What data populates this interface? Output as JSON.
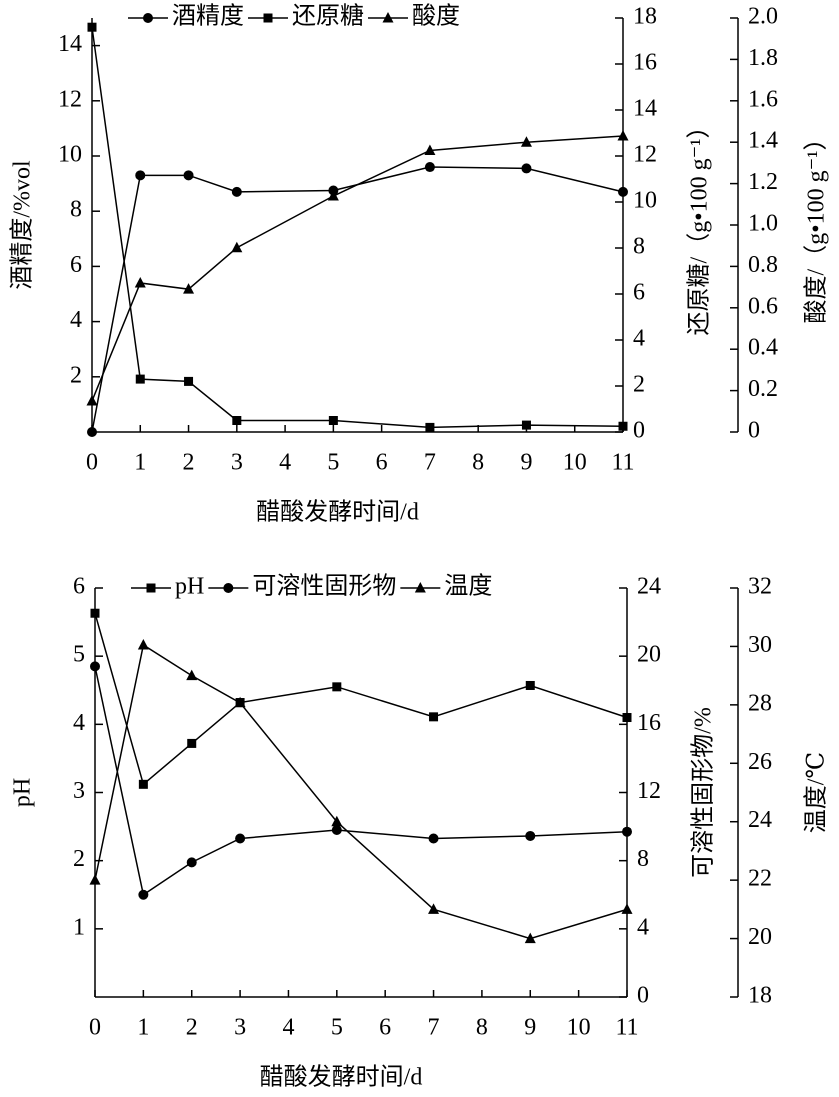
{
  "chart_data": [
    {
      "type": "line",
      "xlabel": "醋酸发酵时间/d",
      "ylabel": "酒精度/%vol",
      "y2label": "还原糖/（g•100 g⁻¹）",
      "y3label": "酸度/（g•100 g⁻¹）",
      "x": [
        0,
        1,
        2,
        3,
        5,
        7,
        9,
        11
      ],
      "xlim": [
        0,
        11
      ],
      "xticks": [
        0,
        1,
        2,
        3,
        4,
        5,
        6,
        7,
        8,
        9,
        10,
        11
      ],
      "ylim": [
        0,
        15
      ],
      "yticks": [
        2,
        4,
        6,
        8,
        10,
        12,
        14
      ],
      "y2lim": [
        0,
        18
      ],
      "y2ticks": [
        0,
        2,
        4,
        6,
        8,
        10,
        12,
        14,
        16,
        18
      ],
      "y3lim": [
        0,
        2
      ],
      "y3ticks": [
        0,
        0.2,
        0.4,
        0.6,
        0.8,
        {
          "value": 1,
          "label": "1.0"
        },
        1.2,
        1.4,
        1.6,
        1.8,
        {
          "value": 2,
          "label": "2.0"
        }
      ],
      "series": [
        {
          "name": "酒精度",
          "color": "#000000",
          "marker": "circle",
          "axis": "y",
          "values": [
            0,
            9.3,
            9.3,
            8.7,
            8.75,
            9.6,
            9.55,
            8.7
          ]
        },
        {
          "name": "还原糖",
          "color": "#000000",
          "marker": "square",
          "axis": "y2",
          "values": [
            17.6,
            2.3,
            2.2,
            0.5,
            0.5,
            0.2,
            0.3,
            0.25
          ]
        },
        {
          "name": "酸度",
          "color": "#000000",
          "marker": "triangle",
          "axis": "y3",
          "values": [
            0.15,
            0.72,
            0.69,
            0.89,
            1.14,
            1.36,
            1.4,
            1.43
          ]
        }
      ]
    },
    {
      "type": "line",
      "xlabel": "醋酸发酵时间/d",
      "ylabel": "pH",
      "y2label": "可溶性固形物/%",
      "y3label": "温度/℃",
      "x": [
        0,
        1,
        2,
        3,
        5,
        7,
        9,
        11
      ],
      "xlim": [
        0,
        11
      ],
      "xticks": [
        0,
        1,
        2,
        3,
        4,
        5,
        6,
        7,
        8,
        9,
        10,
        11
      ],
      "ylim": [
        0,
        6
      ],
      "yticks": [
        1,
        2,
        3,
        4,
        5,
        6
      ],
      "y2lim": [
        0,
        24
      ],
      "y2ticks": [
        0,
        4,
        8,
        12,
        16,
        20,
        24
      ],
      "y3lim": [
        18,
        32
      ],
      "y3ticks": [
        18,
        20,
        22,
        24,
        26,
        28,
        30,
        32
      ],
      "series": [
        {
          "name": "pH",
          "color": "#000000",
          "marker": "square",
          "axis": "y",
          "values": [
            5.63,
            3.12,
            3.72,
            4.32,
            4.55,
            4.11,
            4.57,
            4.1
          ]
        },
        {
          "name": "可溶性固形物",
          "color": "#000000",
          "marker": "circle",
          "axis": "y2",
          "values": [
            19.4,
            6.0,
            7.9,
            9.3,
            9.8,
            9.3,
            9.45,
            9.7
          ]
        },
        {
          "name": "温度",
          "color": "#000000",
          "marker": "triangle",
          "axis": "y3",
          "values": [
            22.0,
            30.05,
            29.0,
            28.07,
            24.0,
            21.0,
            20.0,
            21.0
          ]
        }
      ]
    }
  ]
}
